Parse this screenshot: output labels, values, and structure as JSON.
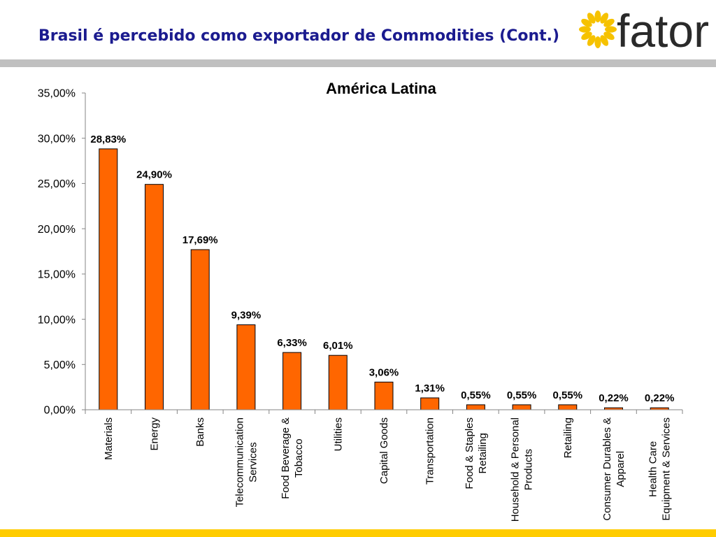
{
  "slide": {
    "title": "Brasil é percebido como exportador de Commodities (Cont.)",
    "logo_text": "fator"
  },
  "icons": {
    "logo": "sun-icon"
  },
  "colors": {
    "title": "#1b1b8f",
    "logo_sun": "#f6c200",
    "logo_text": "#2a2a2a",
    "header_band": "#c0c0c0",
    "footer_band": "#ffcc00",
    "bar_fill": "#ff6600",
    "bar_stroke": "#000000",
    "axis": "#868686"
  },
  "chart_data": {
    "type": "bar",
    "title": "América Latina",
    "categories": [
      "Materials",
      "Energy",
      "Banks",
      "Telecommunication\nServices",
      "Food Beverage &\nTobacco",
      "Utilities",
      "Capital Goods",
      "Transportation",
      "Food & Staples\nRetailing",
      "Household & Personal\nProducts",
      "Retailing",
      "Consumer Durables &\nApparel",
      "Health Care\nEquipment & Services"
    ],
    "values": [
      28.83,
      24.9,
      17.69,
      9.39,
      6.33,
      6.01,
      3.06,
      1.31,
      0.55,
      0.55,
      0.55,
      0.22,
      0.22
    ],
    "value_labels": [
      "28,83%",
      "24,90%",
      "17,69%",
      "9,39%",
      "6,33%",
      "6,01%",
      "3,06%",
      "1,31%",
      "0,55%",
      "0,55%",
      "0,55%",
      "0,22%",
      "0,22%"
    ],
    "ylim": [
      0,
      35
    ],
    "y_ticks": [
      0,
      5,
      10,
      15,
      20,
      25,
      30,
      35
    ],
    "y_tick_labels": [
      "0,00%",
      "5,00%",
      "10,00%",
      "15,00%",
      "20,00%",
      "25,00%",
      "30,00%",
      "35,00%"
    ],
    "grid": false,
    "legend": "none"
  }
}
